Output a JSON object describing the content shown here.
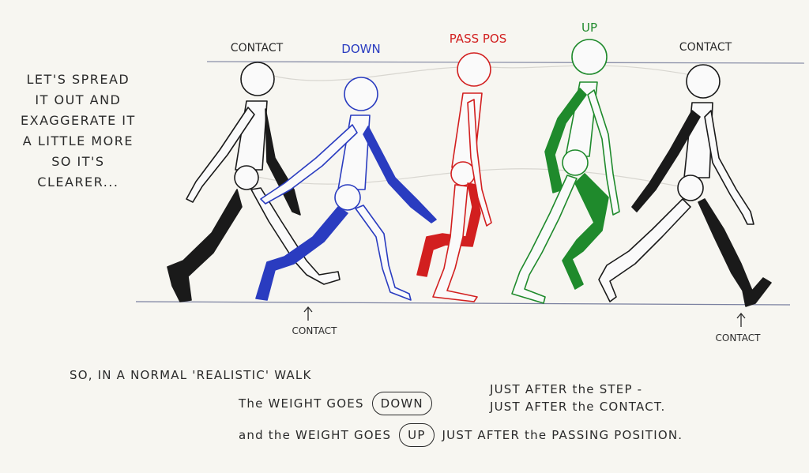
{
  "side_note": [
    "LET'S SPREAD",
    "IT OUT AND",
    "EXAGGERATE IT",
    "A LITTLE MORE",
    "SO IT'S",
    "CLEARER..."
  ],
  "poses": [
    {
      "label": "CONTACT",
      "color": "#1a1a1a"
    },
    {
      "label": "DOWN",
      "color": "#2a3cc0"
    },
    {
      "label": "PASS POS",
      "color": "#d21f1f"
    },
    {
      "label": "UP",
      "color": "#1f8a2c"
    },
    {
      "label": "CONTACT",
      "color": "#1a1a1a"
    }
  ],
  "ground_labels": {
    "left": "CONTACT",
    "right": "CONTACT"
  },
  "caption": {
    "line1": "SO, IN A NORMAL 'REALISTIC' WALK",
    "line2_pre": "The WEIGHT GOES",
    "line2_pill": "DOWN",
    "line2_post": "JUST AFTER the STEP -",
    "line3_post": "JUST AFTER the CONTACT.",
    "line4_pre": "and the WEIGHT GOES",
    "line4_pill": "UP",
    "line4_post": "JUST AFTER the PASSING POSITION."
  }
}
